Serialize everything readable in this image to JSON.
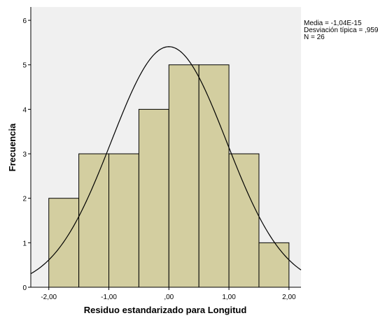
{
  "chart_data": {
    "type": "bar",
    "xlabel": "Residuo estandarizado para Longitud",
    "ylabel": "Frecuencia",
    "bins": [
      {
        "from": -2.0,
        "to": -1.5,
        "count": 2
      },
      {
        "from": -1.5,
        "to": -1.0,
        "count": 3
      },
      {
        "from": -1.0,
        "to": -0.5,
        "count": 3
      },
      {
        "from": -0.5,
        "to": 0.0,
        "count": 4
      },
      {
        "from": 0.0,
        "to": 0.5,
        "count": 5
      },
      {
        "from": 0.5,
        "to": 1.0,
        "count": 5
      },
      {
        "from": 1.0,
        "to": 1.5,
        "count": 3
      },
      {
        "from": 1.5,
        "to": 2.0,
        "count": 1
      }
    ],
    "xlim": [
      -2.3,
      2.2
    ],
    "ylim": [
      0,
      6.3
    ],
    "x_ticks": [
      -2.0,
      -1.0,
      0.0,
      1.0,
      2.0
    ],
    "x_tick_labels": [
      "-2,00",
      "-1,00",
      ",00",
      "1,00",
      "2,00"
    ],
    "y_ticks": [
      0,
      1,
      2,
      3,
      4,
      5,
      6
    ],
    "y_tick_labels": [
      "0",
      "1",
      "2",
      "3",
      "4",
      "5",
      "6"
    ],
    "normal_curve": {
      "mean": -1.04e-15,
      "std": 0.959,
      "n": 26,
      "bin_width": 0.5
    },
    "grid": false,
    "colors": {
      "bar_fill": "#d3cea0",
      "bar_stroke": "#000000",
      "plot_background": "#f0f0f0",
      "curve": "#000000"
    }
  },
  "stats": {
    "mean": "Media = -1,04E-15",
    "std": "Desviación típica = ,959",
    "n": "N = 26"
  }
}
